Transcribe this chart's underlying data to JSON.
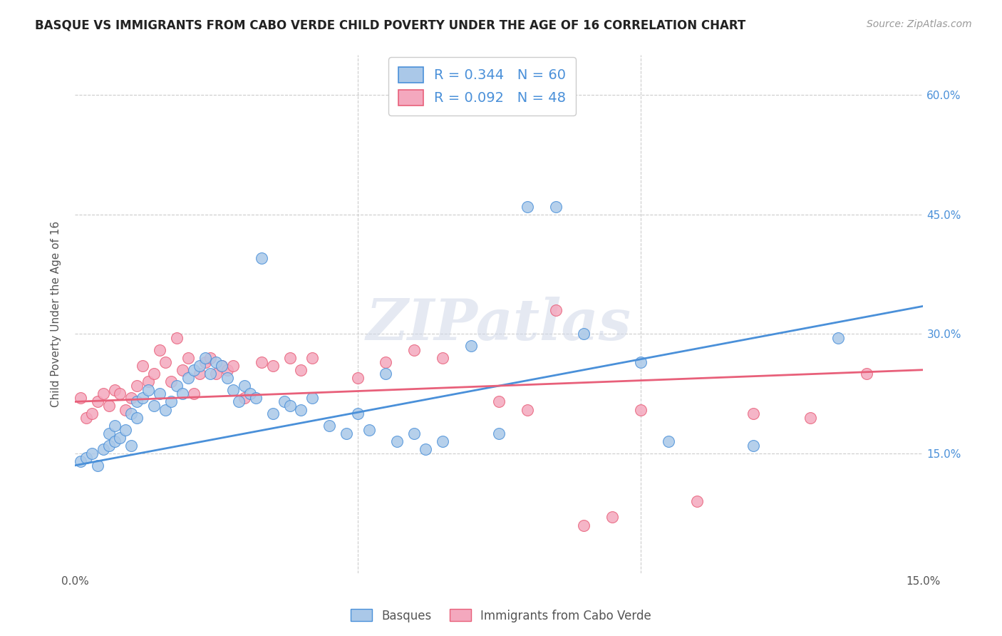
{
  "title": "BASQUE VS IMMIGRANTS FROM CABO VERDE CHILD POVERTY UNDER THE AGE OF 16 CORRELATION CHART",
  "source": "Source: ZipAtlas.com",
  "ylabel": "Child Poverty Under the Age of 16",
  "xlim": [
    0.0,
    0.15
  ],
  "ylim": [
    0.0,
    0.65
  ],
  "basque_R": 0.344,
  "basque_N": 60,
  "cabo_verde_R": 0.092,
  "cabo_verde_N": 48,
  "basque_color": "#aac8e8",
  "cabo_verde_color": "#f4a8be",
  "basque_line_color": "#4a90d9",
  "cabo_verde_line_color": "#e8607a",
  "watermark_text": "ZIPatlas",
  "legend_label_basque": "Basques",
  "legend_label_cabo": "Immigrants from Cabo Verde",
  "basque_line_y0": 0.135,
  "basque_line_y1": 0.335,
  "cabo_line_y0": 0.215,
  "cabo_line_y1": 0.255,
  "basque_x": [
    0.001,
    0.002,
    0.003,
    0.004,
    0.005,
    0.006,
    0.006,
    0.007,
    0.007,
    0.008,
    0.009,
    0.01,
    0.01,
    0.011,
    0.011,
    0.012,
    0.013,
    0.014,
    0.015,
    0.016,
    0.017,
    0.018,
    0.019,
    0.02,
    0.021,
    0.022,
    0.023,
    0.024,
    0.025,
    0.026,
    0.027,
    0.028,
    0.029,
    0.03,
    0.031,
    0.032,
    0.033,
    0.035,
    0.037,
    0.038,
    0.04,
    0.042,
    0.045,
    0.048,
    0.05,
    0.052,
    0.055,
    0.057,
    0.06,
    0.062,
    0.065,
    0.07,
    0.075,
    0.08,
    0.085,
    0.09,
    0.1,
    0.105,
    0.12,
    0.135
  ],
  "basque_y": [
    0.14,
    0.145,
    0.15,
    0.135,
    0.155,
    0.16,
    0.175,
    0.165,
    0.185,
    0.17,
    0.18,
    0.16,
    0.2,
    0.195,
    0.215,
    0.22,
    0.23,
    0.21,
    0.225,
    0.205,
    0.215,
    0.235,
    0.225,
    0.245,
    0.255,
    0.26,
    0.27,
    0.25,
    0.265,
    0.26,
    0.245,
    0.23,
    0.215,
    0.235,
    0.225,
    0.22,
    0.395,
    0.2,
    0.215,
    0.21,
    0.205,
    0.22,
    0.185,
    0.175,
    0.2,
    0.18,
    0.25,
    0.165,
    0.175,
    0.155,
    0.165,
    0.285,
    0.175,
    0.46,
    0.46,
    0.3,
    0.265,
    0.165,
    0.16,
    0.295
  ],
  "cabo_x": [
    0.001,
    0.002,
    0.003,
    0.004,
    0.005,
    0.006,
    0.007,
    0.008,
    0.009,
    0.01,
    0.011,
    0.012,
    0.013,
    0.014,
    0.015,
    0.016,
    0.017,
    0.018,
    0.019,
    0.02,
    0.021,
    0.022,
    0.023,
    0.024,
    0.025,
    0.026,
    0.027,
    0.028,
    0.03,
    0.033,
    0.035,
    0.038,
    0.04,
    0.042,
    0.05,
    0.055,
    0.06,
    0.065,
    0.075,
    0.08,
    0.085,
    0.09,
    0.095,
    0.1,
    0.11,
    0.12,
    0.13,
    0.14
  ],
  "cabo_y": [
    0.22,
    0.195,
    0.2,
    0.215,
    0.225,
    0.21,
    0.23,
    0.225,
    0.205,
    0.22,
    0.235,
    0.26,
    0.24,
    0.25,
    0.28,
    0.265,
    0.24,
    0.295,
    0.255,
    0.27,
    0.225,
    0.25,
    0.265,
    0.27,
    0.25,
    0.26,
    0.255,
    0.26,
    0.22,
    0.265,
    0.26,
    0.27,
    0.255,
    0.27,
    0.245,
    0.265,
    0.28,
    0.27,
    0.215,
    0.205,
    0.33,
    0.06,
    0.07,
    0.205,
    0.09,
    0.2,
    0.195,
    0.25
  ]
}
